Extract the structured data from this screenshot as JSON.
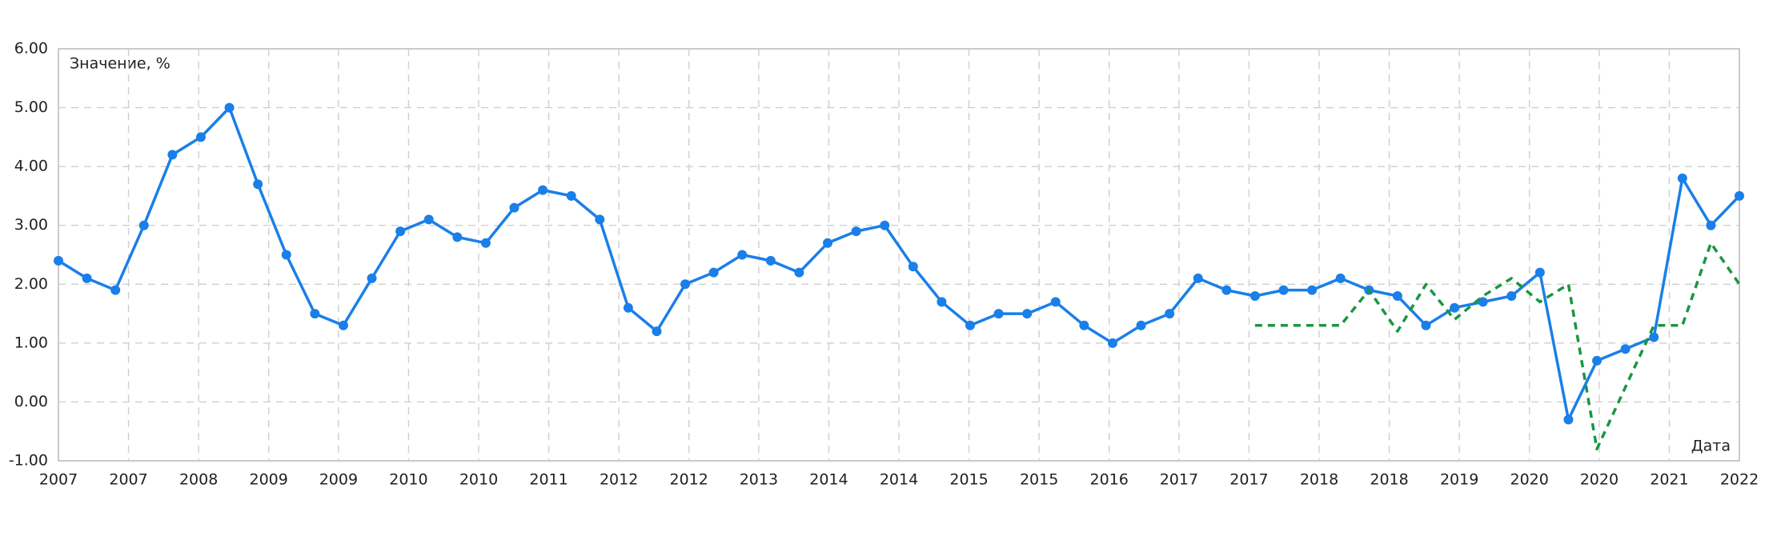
{
  "chart_data": {
    "type": "line",
    "y_label": "Значение, %",
    "x_label": "Дата",
    "categories": [
      null,
      null,
      null,
      null,
      null,
      null,
      null,
      null,
      null,
      null,
      null,
      null,
      null,
      null,
      null,
      null,
      null,
      null,
      null,
      null,
      null,
      null,
      null,
      null,
      null,
      null,
      null,
      null,
      null,
      null,
      null,
      null,
      null,
      null,
      null,
      null,
      null,
      null,
      null,
      null,
      null,
      null,
      null,
      null,
      null,
      null,
      null,
      null,
      null,
      null,
      null,
      null,
      null,
      null,
      null,
      null,
      null,
      null,
      null,
      null
    ],
    "series": [
      {
        "color": "#1a7fe8",
        "linestyle": "solid",
        "markers": true,
        "values": [
          2.4,
          2.1,
          1.9,
          3.0,
          4.2,
          4.5,
          5.0,
          3.7,
          2.5,
          1.5,
          1.3,
          2.1,
          2.9,
          3.1,
          2.8,
          2.7,
          3.3,
          3.6,
          3.5,
          3.1,
          1.6,
          1.2,
          2.0,
          2.2,
          2.5,
          2.4,
          2.2,
          2.7,
          2.9,
          3.0,
          2.3,
          1.7,
          1.3,
          1.5,
          1.5,
          1.7,
          1.3,
          1.0,
          1.3,
          1.5,
          2.1,
          1.9,
          1.8,
          1.9,
          1.9,
          2.1,
          1.9,
          1.8,
          1.3,
          1.6,
          1.7,
          1.8,
          2.2,
          -0.3,
          0.7,
          0.9,
          1.1,
          3.8,
          3.0,
          3.5
        ]
      },
      {
        "color": "#1a9641",
        "linestyle": "dashed",
        "markers": false,
        "values": [
          null,
          null,
          null,
          null,
          null,
          null,
          null,
          null,
          null,
          null,
          null,
          null,
          null,
          null,
          null,
          null,
          null,
          null,
          null,
          null,
          null,
          null,
          null,
          null,
          null,
          null,
          null,
          null,
          null,
          null,
          null,
          null,
          null,
          null,
          null,
          null,
          null,
          null,
          null,
          null,
          null,
          null,
          1.3,
          1.3,
          1.3,
          1.3,
          1.9,
          1.2,
          2.0,
          1.4,
          1.8,
          2.1,
          1.7,
          2.0,
          -0.8,
          0.25,
          1.3,
          1.3,
          2.7,
          2.0
        ]
      }
    ],
    "ylim": [
      -1,
      6
    ],
    "yticks": [
      {
        "value": 6,
        "label": "6.00"
      },
      {
        "value": 5,
        "label": "5.00"
      },
      {
        "value": 4,
        "label": "4.00"
      },
      {
        "value": 3,
        "label": "3.00"
      },
      {
        "value": 2,
        "label": "2.00"
      },
      {
        "value": 1,
        "label": "1.00"
      },
      {
        "value": 0,
        "label": "0.00"
      },
      {
        "value": -1,
        "label": "-1.00"
      }
    ],
    "xlim": [
      0,
      59
    ],
    "xticks": [
      {
        "value": 0,
        "label": "2007"
      },
      {
        "value": 2.46,
        "label": "2007"
      },
      {
        "value": 4.92,
        "label": "2008"
      },
      {
        "value": 7.38,
        "label": "2009"
      },
      {
        "value": 9.83,
        "label": "2009"
      },
      {
        "value": 12.29,
        "label": "2010"
      },
      {
        "value": 14.75,
        "label": "2010"
      },
      {
        "value": 17.21,
        "label": "2011"
      },
      {
        "value": 19.67,
        "label": "2012"
      },
      {
        "value": 22.13,
        "label": "2012"
      },
      {
        "value": 24.58,
        "label": "2013"
      },
      {
        "value": 27.04,
        "label": "2014"
      },
      {
        "value": 29.5,
        "label": "2014"
      },
      {
        "value": 31.96,
        "label": "2015"
      },
      {
        "value": 34.42,
        "label": "2015"
      },
      {
        "value": 36.88,
        "label": "2016"
      },
      {
        "value": 39.33,
        "label": "2017"
      },
      {
        "value": 41.79,
        "label": "2017"
      },
      {
        "value": 44.25,
        "label": "2018"
      },
      {
        "value": 46.71,
        "label": "2018"
      },
      {
        "value": 49.17,
        "label": "2019"
      },
      {
        "value": 51.63,
        "label": "2020"
      },
      {
        "value": 54.08,
        "label": "2020"
      },
      {
        "value": 56.54,
        "label": "2021"
      },
      {
        "value": 59,
        "label": "2022"
      }
    ],
    "grid": true
  }
}
